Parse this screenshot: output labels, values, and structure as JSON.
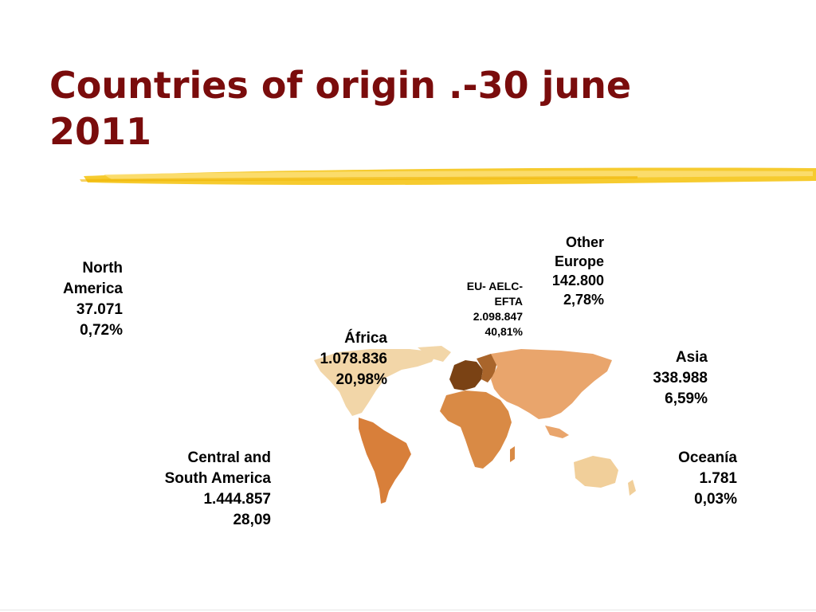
{
  "slide": {
    "title_line1": "Countries of origin .-30 june",
    "title_line2": "2011"
  },
  "regions": {
    "north_america": {
      "name_line1": "North",
      "name_line2": "America",
      "value": "37.071",
      "percent": "0,72%"
    },
    "other_europe": {
      "name_line1": "Other",
      "name_line2": "Europe",
      "value": "142.800",
      "percent": "2,78%"
    },
    "eu_aelc_efta": {
      "name_line1": "EU- AELC-",
      "name_line2": "EFTA",
      "value": "2.098.847",
      "percent": "40,81%"
    },
    "africa": {
      "name": "África",
      "value": "1.078.836",
      "percent": "20,98%"
    },
    "asia": {
      "name": "Asia",
      "value": "338.988",
      "percent": "6,59%"
    },
    "central_south_america": {
      "name_line1": "Central and",
      "name_line2": "South America",
      "value": "1.444.857",
      "percent": "28,09"
    },
    "oceania": {
      "name": "Oceanía",
      "value": "1.781",
      "percent": "0,03%"
    }
  },
  "colors": {
    "title": "#7a0c0c",
    "brush": "#f5c518",
    "north_america": "#f2d6a8",
    "central_south_america": "#d87f3a",
    "africa": "#d98a45",
    "asia": "#e9a56c",
    "oceania": "#f1cf9a",
    "eu": "#7a4214",
    "other_europe": "#a9652b"
  }
}
